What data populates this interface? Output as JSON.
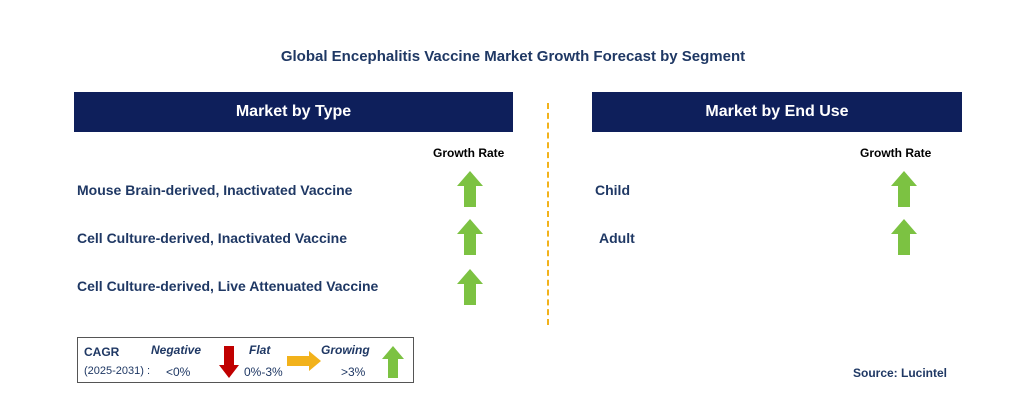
{
  "title": "Global Encephalitis Vaccine Market Growth Forecast by Segment",
  "left_panel": {
    "header": "Market by Type",
    "growth_rate_label": "Growth Rate",
    "rows": [
      {
        "label": "Mouse Brain-derived, Inactivated Vaccine",
        "trend": "growing"
      },
      {
        "label": "Cell Culture-derived, Inactivated Vaccine",
        "trend": "growing"
      },
      {
        "label": "Cell Culture-derived, Live Attenuated Vaccine",
        "trend": "growing"
      }
    ]
  },
  "right_panel": {
    "header": "Market by End Use",
    "growth_rate_label": "Growth Rate",
    "rows": [
      {
        "label": "Child",
        "trend": "growing"
      },
      {
        "label": "Adult",
        "trend": "growing"
      }
    ]
  },
  "legend": {
    "cagr_label": "CAGR",
    "period": "(2025-2031) :",
    "negative_label": "Negative",
    "negative_range": "<0%",
    "flat_label": "Flat",
    "flat_range": "0%-3%",
    "growing_label": "Growing",
    "growing_range": ">3%"
  },
  "source": "Source: Lucintel",
  "colors": {
    "header_bg": "#0e1f5b",
    "text": "#1f3864",
    "growing": "#7cc242",
    "negative": "#c00000",
    "flat": "#f2b21b",
    "divider": "#f2b21b"
  }
}
